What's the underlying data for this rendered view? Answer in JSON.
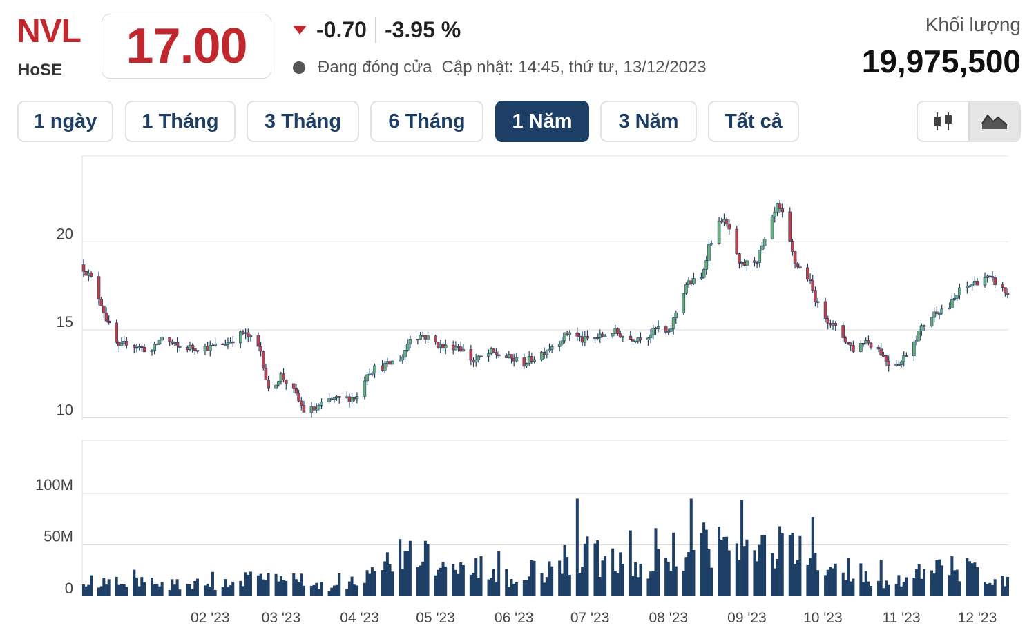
{
  "header": {
    "ticker": "NVL",
    "exchange": "HoSE",
    "price": "17.00",
    "change": "-0.70",
    "change_pct": "-3.95 %",
    "status": "Đang đóng cửa",
    "updated": "Cập nhật: 14:45, thứ tư, 13/12/2023",
    "volume_label": "Khối lượng",
    "volume_value": "19,975,500"
  },
  "colors": {
    "down": "#c0282e",
    "up_candle": "#6aae7d",
    "down_candle": "#c0404a",
    "wick": "#1e3f66",
    "volume_bar": "#1e3f66",
    "active_tab": "#1d3f66"
  },
  "tabs": [
    "1 ngày",
    "1 Tháng",
    "3 Tháng",
    "6 Tháng",
    "1 Năm",
    "3 Năm",
    "Tất cả"
  ],
  "active_tab": "1 Năm",
  "chart_type_toggle": {
    "options": [
      "candlestick-icon",
      "area-chart-icon"
    ],
    "selected": "area-chart-icon"
  },
  "chart_data": [
    {
      "type": "candlestick",
      "title": "",
      "y_ticks": [
        "10",
        "15",
        "20"
      ],
      "ylim": [
        9.9,
        24.8
      ],
      "grid": true,
      "x_ticks": [
        "02 '23",
        "03 '23",
        "04 '23",
        "05 '23",
        "06 '23",
        "07 '23",
        "08 '23",
        "09 '23",
        "10 '23",
        "11 '23",
        "12 '23"
      ],
      "close_trend": [
        [
          "2022-12-13",
          18.5
        ],
        [
          "2022-12-16",
          17.9
        ],
        [
          "2022-12-20",
          16.5
        ],
        [
          "2022-12-23",
          15.2
        ],
        [
          "2022-12-27",
          13.9
        ],
        [
          "2022-12-30",
          14.3
        ],
        [
          "2023-01-04",
          14.0
        ],
        [
          "2023-01-09",
          13.8
        ],
        [
          "2023-01-13",
          14.6
        ],
        [
          "2023-01-19",
          14.0
        ],
        [
          "2023-02-01",
          14.0
        ],
        [
          "2023-02-08",
          14.3
        ],
        [
          "2023-02-14",
          14.8
        ],
        [
          "2023-02-17",
          14.5
        ],
        [
          "2023-02-21",
          13.8
        ],
        [
          "2023-02-24",
          11.5
        ],
        [
          "2023-03-01",
          12.4
        ],
        [
          "2023-03-06",
          11.5
        ],
        [
          "2023-03-10",
          10.4
        ],
        [
          "2023-03-15",
          10.5
        ],
        [
          "2023-03-20",
          11.0
        ],
        [
          "2023-03-27",
          11.1
        ],
        [
          "2023-03-31",
          11.2
        ],
        [
          "2023-04-04",
          12.6
        ],
        [
          "2023-04-07",
          12.8
        ],
        [
          "2023-04-12",
          13.0
        ],
        [
          "2023-04-18",
          13.5
        ],
        [
          "2023-04-21",
          14.6
        ],
        [
          "2023-04-26",
          14.7
        ],
        [
          "2023-05-04",
          14.0
        ],
        [
          "2023-05-10",
          14.1
        ],
        [
          "2023-05-16",
          13.2
        ],
        [
          "2023-05-23",
          13.7
        ],
        [
          "2023-05-30",
          13.4
        ],
        [
          "2023-06-05",
          13.1
        ],
        [
          "2023-06-12",
          13.7
        ],
        [
          "2023-06-19",
          14.4
        ],
        [
          "2023-06-23",
          14.9
        ],
        [
          "2023-06-28",
          14.4
        ],
        [
          "2023-07-05",
          14.6
        ],
        [
          "2023-07-10",
          14.9
        ],
        [
          "2023-07-17",
          14.5
        ],
        [
          "2023-07-24",
          14.7
        ],
        [
          "2023-07-28",
          15.1
        ],
        [
          "2023-08-01",
          14.7
        ],
        [
          "2023-08-04",
          16.0
        ],
        [
          "2023-08-08",
          17.6
        ],
        [
          "2023-08-14",
          17.9
        ],
        [
          "2023-08-17",
          19.8
        ],
        [
          "2023-08-22",
          21.3
        ],
        [
          "2023-08-25",
          20.7
        ],
        [
          "2023-08-29",
          18.6
        ],
        [
          "2023-09-05",
          19.0
        ],
        [
          "2023-09-08",
          20.0
        ],
        [
          "2023-09-13",
          22.0
        ],
        [
          "2023-09-15",
          21.5
        ],
        [
          "2023-09-20",
          18.8
        ],
        [
          "2023-09-25",
          18.0
        ],
        [
          "2023-09-29",
          16.4
        ],
        [
          "2023-10-04",
          15.4
        ],
        [
          "2023-10-09",
          14.6
        ],
        [
          "2023-10-13",
          13.9
        ],
        [
          "2023-10-18",
          14.4
        ],
        [
          "2023-10-23",
          13.9
        ],
        [
          "2023-10-27",
          13.1
        ],
        [
          "2023-11-01",
          13.2
        ],
        [
          "2023-11-06",
          14.4
        ],
        [
          "2023-11-10",
          15.3
        ],
        [
          "2023-11-15",
          16.1
        ],
        [
          "2023-11-20",
          16.3
        ],
        [
          "2023-11-24",
          17.2
        ],
        [
          "2023-11-29",
          17.6
        ],
        [
          "2023-12-04",
          18.0
        ],
        [
          "2023-12-08",
          17.7
        ],
        [
          "2023-12-13",
          17.0
        ]
      ]
    },
    {
      "type": "bar",
      "title": "",
      "y_ticks": [
        "0",
        "50M",
        "100M"
      ],
      "ylim": [
        0,
        140
      ],
      "unit": "M",
      "volume_trend": [
        [
          "2022-12-13",
          15
        ],
        [
          "2023-01-05",
          14
        ],
        [
          "2023-01-31",
          12
        ],
        [
          "2023-02-24",
          22
        ],
        [
          "2023-03-01",
          20
        ],
        [
          "2023-03-20",
          10
        ],
        [
          "2023-04-04",
          20
        ],
        [
          "2023-04-21",
          47
        ],
        [
          "2023-05-15",
          20
        ],
        [
          "2023-06-12",
          18
        ],
        [
          "2023-06-22",
          45
        ],
        [
          "2023-07-05",
          40
        ],
        [
          "2023-07-24",
          25
        ],
        [
          "2023-08-04",
          50
        ],
        [
          "2023-08-17",
          60
        ],
        [
          "2023-09-05",
          45
        ],
        [
          "2023-09-15",
          55
        ],
        [
          "2023-09-29",
          30
        ],
        [
          "2023-10-13",
          20
        ],
        [
          "2023-10-27",
          16
        ],
        [
          "2023-11-06",
          22
        ],
        [
          "2023-11-17",
          28
        ],
        [
          "2023-11-27",
          30
        ],
        [
          "2023-12-13",
          15
        ]
      ]
    }
  ]
}
